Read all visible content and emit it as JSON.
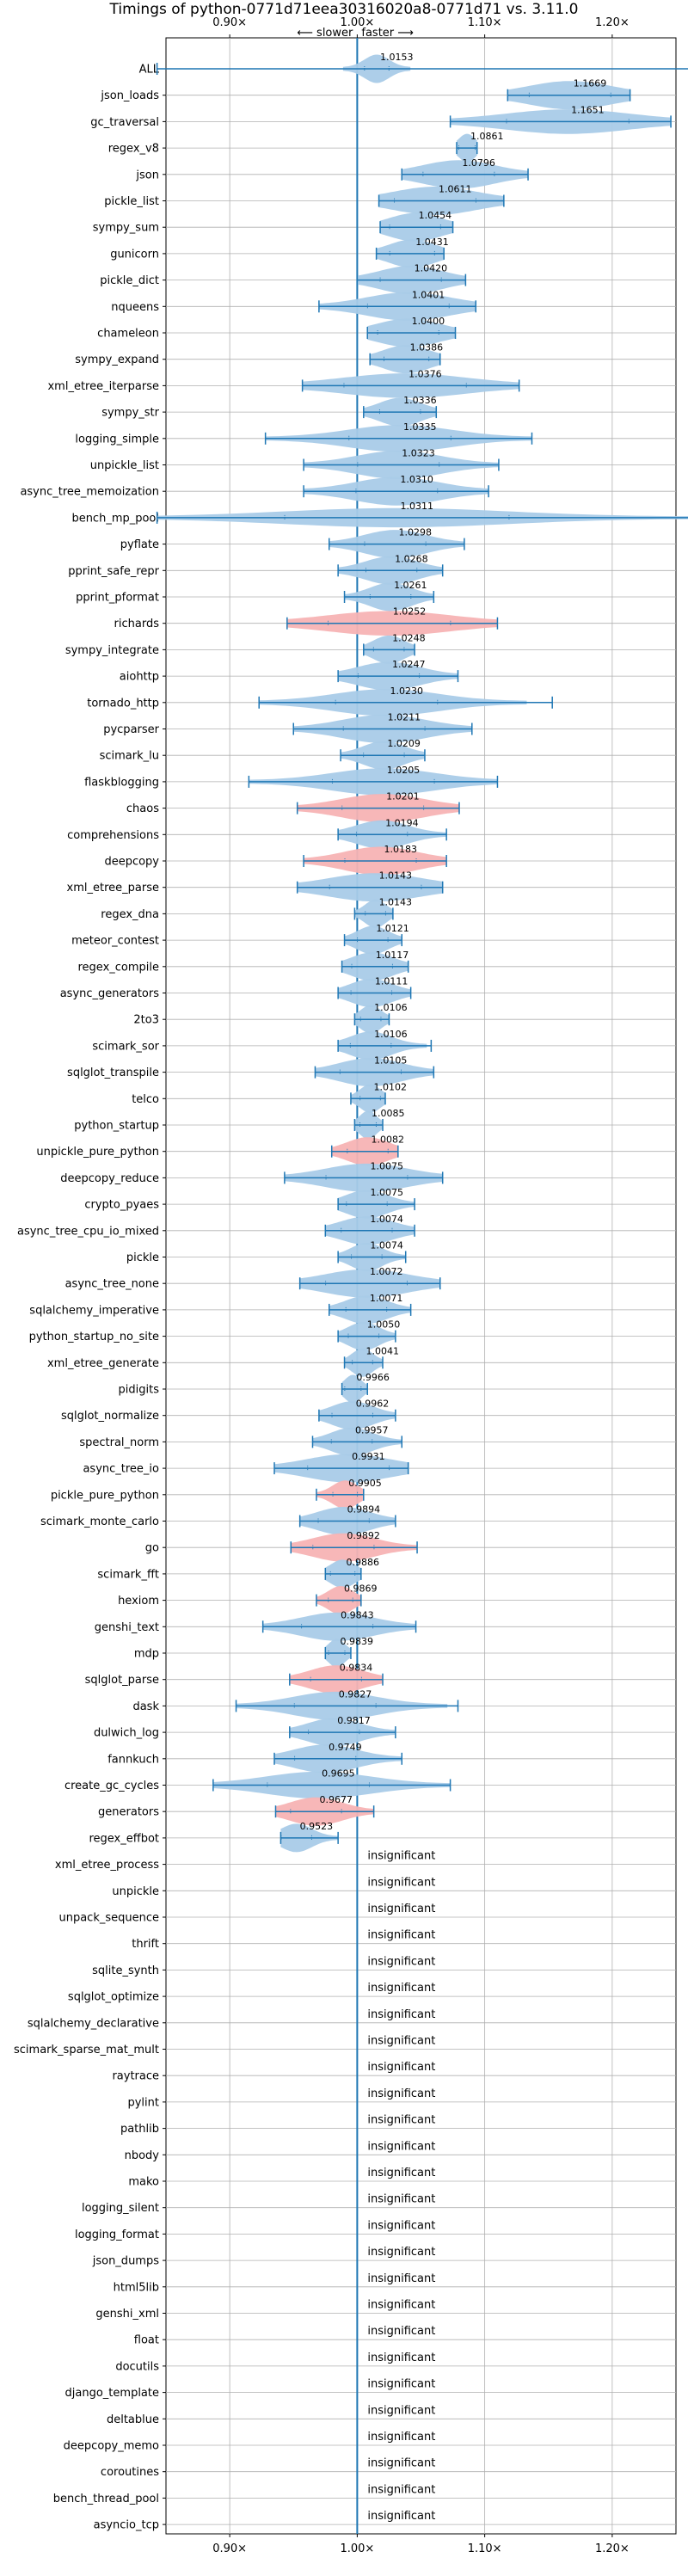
{
  "chart_data": {
    "type": "violin",
    "title": "Timings of python-0771d71eea30316020a8-0771d71 vs. 3.11.0",
    "direction_labels": {
      "slower": "⟵ slower",
      "faster": "faster ⟶"
    },
    "xlim": [
      0.85,
      1.25
    ],
    "xticks": [
      {
        "value": 0.9,
        "label": "0.90×"
      },
      {
        "value": 1.0,
        "label": "1.00×"
      },
      {
        "value": 1.1,
        "label": "1.10×"
      },
      {
        "value": 1.2,
        "label": "1.20×"
      }
    ],
    "grid": true,
    "reference_line": 1.0,
    "colors": {
      "faster": "#a9cbe8",
      "slower": "#f7b3b4",
      "line": "#1f77b4",
      "grid": "#b0b0b0"
    },
    "insignificant_label": "insignificant",
    "benchmarks": [
      {
        "name": "ALL",
        "mean": 1.0153,
        "min": 0.843,
        "max": 1.283,
        "spread": 0.012,
        "color": "faster"
      },
      {
        "name": "json_loads",
        "mean": 1.1669,
        "min": 1.118,
        "max": 1.214,
        "spread": 0.04,
        "color": "faster"
      },
      {
        "name": "gc_traversal",
        "mean": 1.1651,
        "min": 1.073,
        "max": 1.246,
        "spread": 0.06,
        "color": "faster"
      },
      {
        "name": "regex_v8",
        "mean": 1.0861,
        "min": 1.078,
        "max": 1.094,
        "spread": 0.008,
        "color": "faster"
      },
      {
        "name": "json",
        "mean": 1.0796,
        "min": 1.035,
        "max": 1.134,
        "spread": 0.035,
        "color": "faster"
      },
      {
        "name": "pickle_list",
        "mean": 1.0611,
        "min": 1.017,
        "max": 1.115,
        "spread": 0.04,
        "color": "faster"
      },
      {
        "name": "sympy_sum",
        "mean": 1.0454,
        "min": 1.018,
        "max": 1.075,
        "spread": 0.025,
        "color": "faster"
      },
      {
        "name": "gunicorn",
        "mean": 1.0431,
        "min": 1.015,
        "max": 1.068,
        "spread": 0.022,
        "color": "faster"
      },
      {
        "name": "pickle_dict",
        "mean": 1.042,
        "min": 1.0,
        "max": 1.085,
        "spread": 0.03,
        "color": "faster"
      },
      {
        "name": "nqueens",
        "mean": 1.0401,
        "min": 0.97,
        "max": 1.093,
        "spread": 0.04,
        "color": "faster"
      },
      {
        "name": "chameleon",
        "mean": 1.04,
        "min": 1.008,
        "max": 1.077,
        "spread": 0.03,
        "color": "faster"
      },
      {
        "name": "sympy_expand",
        "mean": 1.0386,
        "min": 1.01,
        "max": 1.065,
        "spread": 0.022,
        "color": "faster"
      },
      {
        "name": "xml_etree_iterparse",
        "mean": 1.0376,
        "min": 0.957,
        "max": 1.127,
        "spread": 0.06,
        "color": "faster"
      },
      {
        "name": "sympy_str",
        "mean": 1.0336,
        "min": 1.005,
        "max": 1.062,
        "spread": 0.02,
        "color": "faster"
      },
      {
        "name": "logging_simple",
        "mean": 1.0335,
        "min": 0.928,
        "max": 1.137,
        "spread": 0.05,
        "color": "faster"
      },
      {
        "name": "unpickle_list",
        "mean": 1.0323,
        "min": 0.958,
        "max": 1.111,
        "spread": 0.04,
        "color": "faster"
      },
      {
        "name": "async_tree_memoization",
        "mean": 1.031,
        "min": 0.958,
        "max": 1.103,
        "spread": 0.04,
        "color": "faster"
      },
      {
        "name": "bench_mp_pool",
        "mean": 1.0311,
        "min": 0.843,
        "max": 1.283,
        "spread": 0.11,
        "color": "faster"
      },
      {
        "name": "pyflate",
        "mean": 1.0298,
        "min": 0.978,
        "max": 1.084,
        "spread": 0.03,
        "color": "faster"
      },
      {
        "name": "pprint_safe_repr",
        "mean": 1.0268,
        "min": 0.985,
        "max": 1.067,
        "spread": 0.025,
        "color": "faster"
      },
      {
        "name": "pprint_pformat",
        "mean": 1.0261,
        "min": 0.99,
        "max": 1.06,
        "spread": 0.02,
        "color": "faster"
      },
      {
        "name": "richards",
        "mean": 1.0252,
        "min": 0.945,
        "max": 1.11,
        "spread": 0.06,
        "color": "slower"
      },
      {
        "name": "sympy_integrate",
        "mean": 1.0248,
        "min": 1.005,
        "max": 1.045,
        "spread": 0.015,
        "color": "faster"
      },
      {
        "name": "aiohttp",
        "mean": 1.0247,
        "min": 0.985,
        "max": 1.079,
        "spread": 0.03,
        "color": "faster"
      },
      {
        "name": "tornado_http",
        "mean": 1.023,
        "min": 0.923,
        "max": 1.153,
        "spread": 0.05,
        "color": "faster"
      },
      {
        "name": "pycparser",
        "mean": 1.0211,
        "min": 0.95,
        "max": 1.09,
        "spread": 0.04,
        "color": "faster"
      },
      {
        "name": "scimark_lu",
        "mean": 1.0209,
        "min": 0.987,
        "max": 1.053,
        "spread": 0.02,
        "color": "faster"
      },
      {
        "name": "flaskblogging",
        "mean": 1.0205,
        "min": 0.915,
        "max": 1.11,
        "spread": 0.05,
        "color": "faster"
      },
      {
        "name": "chaos",
        "mean": 1.0201,
        "min": 0.953,
        "max": 1.08,
        "spread": 0.04,
        "color": "slower"
      },
      {
        "name": "comprehensions",
        "mean": 1.0194,
        "min": 0.985,
        "max": 1.07,
        "spread": 0.025,
        "color": "faster"
      },
      {
        "name": "deepcopy",
        "mean": 1.0183,
        "min": 0.958,
        "max": 1.07,
        "spread": 0.035,
        "color": "slower"
      },
      {
        "name": "xml_etree_parse",
        "mean": 1.0143,
        "min": 0.953,
        "max": 1.067,
        "spread": 0.045,
        "color": "faster"
      },
      {
        "name": "regex_dna",
        "mean": 1.0143,
        "min": 0.998,
        "max": 1.028,
        "spread": 0.01,
        "color": "faster"
      },
      {
        "name": "meteor_contest",
        "mean": 1.0121,
        "min": 0.99,
        "max": 1.035,
        "spread": 0.015,
        "color": "faster"
      },
      {
        "name": "regex_compile",
        "mean": 1.0117,
        "min": 0.988,
        "max": 1.04,
        "spread": 0.02,
        "color": "faster"
      },
      {
        "name": "async_generators",
        "mean": 1.0111,
        "min": 0.985,
        "max": 1.042,
        "spread": 0.02,
        "color": "faster"
      },
      {
        "name": "2to3",
        "mean": 1.0106,
        "min": 0.998,
        "max": 1.025,
        "spread": 0.01,
        "color": "faster"
      },
      {
        "name": "scimark_sor",
        "mean": 1.0106,
        "min": 0.985,
        "max": 1.058,
        "spread": 0.02,
        "color": "faster"
      },
      {
        "name": "sqlglot_transpile",
        "mean": 1.0105,
        "min": 0.967,
        "max": 1.06,
        "spread": 0.03,
        "color": "faster"
      },
      {
        "name": "telco",
        "mean": 1.0102,
        "min": 0.995,
        "max": 1.022,
        "spread": 0.01,
        "color": "faster"
      },
      {
        "name": "python_startup",
        "mean": 1.0085,
        "min": 0.998,
        "max": 1.02,
        "spread": 0.008,
        "color": "faster"
      },
      {
        "name": "unpickle_pure_python",
        "mean": 1.0082,
        "min": 0.98,
        "max": 1.032,
        "spread": 0.02,
        "color": "slower"
      },
      {
        "name": "deepcopy_reduce",
        "mean": 1.0075,
        "min": 0.943,
        "max": 1.067,
        "spread": 0.04,
        "color": "faster"
      },
      {
        "name": "crypto_pyaes",
        "mean": 1.0075,
        "min": 0.985,
        "max": 1.045,
        "spread": 0.02,
        "color": "faster"
      },
      {
        "name": "async_tree_cpu_io_mixed",
        "mean": 1.0074,
        "min": 0.975,
        "max": 1.045,
        "spread": 0.025,
        "color": "faster"
      },
      {
        "name": "pickle",
        "mean": 1.0074,
        "min": 0.985,
        "max": 1.038,
        "spread": 0.015,
        "color": "faster"
      },
      {
        "name": "async_tree_none",
        "mean": 1.0072,
        "min": 0.955,
        "max": 1.065,
        "spread": 0.04,
        "color": "faster"
      },
      {
        "name": "sqlalchemy_imperative",
        "mean": 1.0071,
        "min": 0.978,
        "max": 1.042,
        "spread": 0.02,
        "color": "faster"
      },
      {
        "name": "python_startup_no_site",
        "mean": 1.005,
        "min": 0.985,
        "max": 1.03,
        "spread": 0.015,
        "color": "faster"
      },
      {
        "name": "xml_etree_generate",
        "mean": 1.0041,
        "min": 0.99,
        "max": 1.02,
        "spread": 0.01,
        "color": "faster"
      },
      {
        "name": "pidigits",
        "mean": 0.9966,
        "min": 0.988,
        "max": 1.008,
        "spread": 0.008,
        "color": "faster"
      },
      {
        "name": "sqlglot_normalize",
        "mean": 0.9962,
        "min": 0.97,
        "max": 1.03,
        "spread": 0.02,
        "color": "faster"
      },
      {
        "name": "spectral_norm",
        "mean": 0.9957,
        "min": 0.965,
        "max": 1.035,
        "spread": 0.02,
        "color": "faster"
      },
      {
        "name": "async_tree_io",
        "mean": 0.9931,
        "min": 0.935,
        "max": 1.04,
        "spread": 0.04,
        "color": "faster"
      },
      {
        "name": "pickle_pure_python",
        "mean": 0.9905,
        "min": 0.968,
        "max": 1.005,
        "spread": 0.012,
        "color": "slower"
      },
      {
        "name": "scimark_monte_carlo",
        "mean": 0.9894,
        "min": 0.955,
        "max": 1.03,
        "spread": 0.025,
        "color": "faster"
      },
      {
        "name": "go",
        "mean": 0.9892,
        "min": 0.948,
        "max": 1.047,
        "spread": 0.03,
        "color": "slower"
      },
      {
        "name": "scimark_fft",
        "mean": 0.9886,
        "min": 0.975,
        "max": 1.003,
        "spread": 0.012,
        "color": "faster"
      },
      {
        "name": "hexiom",
        "mean": 0.9869,
        "min": 0.968,
        "max": 1.003,
        "spread": 0.012,
        "color": "slower"
      },
      {
        "name": "genshi_text",
        "mean": 0.9843,
        "min": 0.926,
        "max": 1.046,
        "spread": 0.035,
        "color": "faster"
      },
      {
        "name": "mdp",
        "mean": 0.9839,
        "min": 0.975,
        "max": 0.995,
        "spread": 0.008,
        "color": "faster"
      },
      {
        "name": "sqlglot_parse",
        "mean": 0.9834,
        "min": 0.947,
        "max": 1.02,
        "spread": 0.025,
        "color": "slower"
      },
      {
        "name": "dask",
        "mean": 0.9827,
        "min": 0.905,
        "max": 1.079,
        "spread": 0.04,
        "color": "faster"
      },
      {
        "name": "dulwich_log",
        "mean": 0.9817,
        "min": 0.947,
        "max": 1.03,
        "spread": 0.025,
        "color": "faster"
      },
      {
        "name": "fannkuch",
        "mean": 0.9749,
        "min": 0.935,
        "max": 1.035,
        "spread": 0.03,
        "color": "faster"
      },
      {
        "name": "create_gc_cycles",
        "mean": 0.9695,
        "min": 0.887,
        "max": 1.073,
        "spread": 0.05,
        "color": "faster"
      },
      {
        "name": "generators",
        "mean": 0.9677,
        "min": 0.936,
        "max": 1.013,
        "spread": 0.025,
        "color": "slower"
      },
      {
        "name": "regex_effbot",
        "mean": 0.9523,
        "min": 0.94,
        "max": 0.985,
        "spread": 0.015,
        "color": "faster"
      },
      {
        "name": "xml_etree_process",
        "insignificant": true
      },
      {
        "name": "unpickle",
        "insignificant": true
      },
      {
        "name": "unpack_sequence",
        "insignificant": true
      },
      {
        "name": "thrift",
        "insignificant": true
      },
      {
        "name": "sqlite_synth",
        "insignificant": true
      },
      {
        "name": "sqlglot_optimize",
        "insignificant": true
      },
      {
        "name": "sqlalchemy_declarative",
        "insignificant": true
      },
      {
        "name": "scimark_sparse_mat_mult",
        "insignificant": true
      },
      {
        "name": "raytrace",
        "insignificant": true
      },
      {
        "name": "pylint",
        "insignificant": true
      },
      {
        "name": "pathlib",
        "insignificant": true
      },
      {
        "name": "nbody",
        "insignificant": true
      },
      {
        "name": "mako",
        "insignificant": true
      },
      {
        "name": "logging_silent",
        "insignificant": true
      },
      {
        "name": "logging_format",
        "insignificant": true
      },
      {
        "name": "json_dumps",
        "insignificant": true
      },
      {
        "name": "html5lib",
        "insignificant": true
      },
      {
        "name": "genshi_xml",
        "insignificant": true
      },
      {
        "name": "float",
        "insignificant": true
      },
      {
        "name": "docutils",
        "insignificant": true
      },
      {
        "name": "django_template",
        "insignificant": true
      },
      {
        "name": "deltablue",
        "insignificant": true
      },
      {
        "name": "deepcopy_memo",
        "insignificant": true
      },
      {
        "name": "coroutines",
        "insignificant": true
      },
      {
        "name": "bench_thread_pool",
        "insignificant": true
      },
      {
        "name": "asyncio_tcp",
        "insignificant": true
      }
    ]
  }
}
